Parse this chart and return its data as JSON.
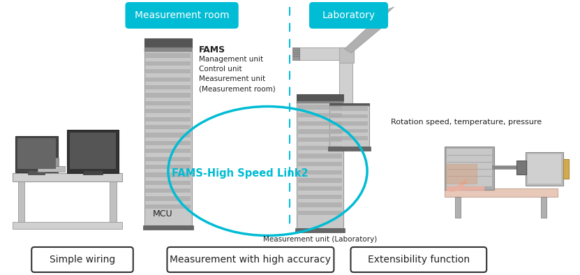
{
  "bg_color": "#ffffff",
  "teal_color": "#00BCD4",
  "text_dark": "#222222",
  "label_measurement_room": "Measurement room",
  "label_laboratory": "Laboratory",
  "label_fams": "FAMS",
  "label_fams_sub": "Management unit\nControl unit\nMeasurement unit\n(Measurement room)",
  "label_mcu": "MCU",
  "label_link": "FAMS-High Speed Link2",
  "label_rotation": "Rotation speed, temperature, pressure",
  "label_meas_lab": "Measurement unit (Laboratory)",
  "badge1": "Simple wiring",
  "badge2": "Measurement with high accuracy",
  "badge3": "Extensibility function",
  "dashed_line_x": 0.508,
  "fig_width": 8.31,
  "fig_height": 3.94
}
